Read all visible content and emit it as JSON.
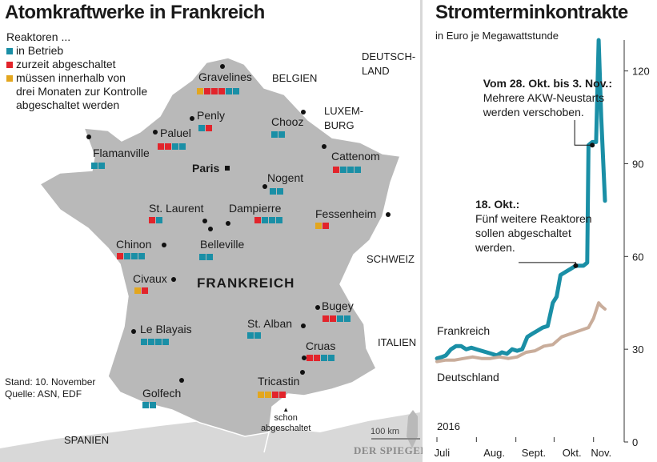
{
  "colors": {
    "in_operation": "#1a8fa6",
    "shut_down": "#e2242b",
    "to_shut_down": "#e3a61e",
    "land_france": "#b9b9b9",
    "land_neighbors": "#d8d8d8",
    "line_frankreich": "#1a8fa6",
    "line_deutschland": "#c9ad9b"
  },
  "map": {
    "title": "Atomkraftwerke in Frankreich",
    "legend": {
      "heading": "Reaktoren ...",
      "items": [
        {
          "label": "in Betrieb",
          "status": "in_operation"
        },
        {
          "label": "zurzeit abgeschaltet",
          "status": "shut_down"
        },
        {
          "label": "müssen innerhalb von",
          "label2": "drei Monaten zur Kontrolle",
          "label3": "abgeschaltet werden",
          "status": "to_shut_down"
        }
      ]
    },
    "countries": {
      "deutschland_1": "DEUTSCH-",
      "deutschland_2": "LAND",
      "belgien": "BELGIEN",
      "luxemburg_1": "LUXEM-",
      "luxemburg_2": "BURG",
      "schweiz": "SCHWEIZ",
      "italien": "ITALIEN",
      "spanien": "SPANIEN",
      "frankreich": "FRANKREICH",
      "paris": "Paris"
    },
    "plants": [
      {
        "name": "Gravelines",
        "reactors": [
          "to_shut_down",
          "shut_down",
          "shut_down",
          "shut_down",
          "in_operation",
          "in_operation"
        ]
      },
      {
        "name": "Penly",
        "reactors": [
          "in_operation",
          "shut_down"
        ]
      },
      {
        "name": "Paluel",
        "reactors": [
          "shut_down",
          "shut_down",
          "in_operation",
          "in_operation"
        ]
      },
      {
        "name": "Flamanville",
        "reactors": [
          "in_operation",
          "in_operation"
        ]
      },
      {
        "name": "Chooz",
        "reactors": [
          "in_operation",
          "in_operation"
        ]
      },
      {
        "name": "Cattenom",
        "reactors": [
          "shut_down",
          "in_operation",
          "in_operation",
          "in_operation"
        ]
      },
      {
        "name": "Nogent",
        "reactors": [
          "in_operation",
          "in_operation"
        ]
      },
      {
        "name": "St. Laurent",
        "reactors": [
          "shut_down",
          "in_operation"
        ]
      },
      {
        "name": "Dampierre",
        "reactors": [
          "shut_down",
          "in_operation",
          "in_operation",
          "in_operation"
        ]
      },
      {
        "name": "Fessenheim",
        "reactors": [
          "to_shut_down",
          "shut_down"
        ]
      },
      {
        "name": "Chinon",
        "reactors": [
          "shut_down",
          "in_operation",
          "in_operation",
          "in_operation"
        ]
      },
      {
        "name": "Belleville",
        "reactors": [
          "in_operation",
          "in_operation"
        ]
      },
      {
        "name": "Civaux",
        "reactors": [
          "to_shut_down",
          "shut_down"
        ]
      },
      {
        "name": "Bugey",
        "reactors": [
          "shut_down",
          "shut_down",
          "in_operation",
          "in_operation"
        ]
      },
      {
        "name": "Le Blayais",
        "reactors": [
          "in_operation",
          "in_operation",
          "in_operation",
          "in_operation"
        ]
      },
      {
        "name": "St. Alban",
        "reactors": [
          "in_operation",
          "in_operation"
        ]
      },
      {
        "name": "Cruas",
        "reactors": [
          "shut_down",
          "shut_down",
          "in_operation",
          "in_operation"
        ]
      },
      {
        "name": "Golfech",
        "reactors": [
          "in_operation",
          "in_operation"
        ]
      },
      {
        "name": "Tricastin",
        "reactors": [
          "to_shut_down",
          "to_shut_down",
          "shut_down",
          "shut_down"
        ]
      }
    ],
    "tricastin_note_1": "schon",
    "tricastin_note_2": "abgeschaltet",
    "footnote_1": "Stand: 10. November",
    "footnote_2": "Quelle: ASN, EDF",
    "scale_label": "100 km",
    "brand": "DER SPIEGEL"
  },
  "chart_data": {
    "type": "line",
    "title": "Stromterminkontrakte",
    "subtitle": "in Euro je Megawattstunde",
    "xlabel": "",
    "ylabel": "",
    "year_label": "2016",
    "x_tick_labels": [
      "Juli",
      "Aug.",
      "Sept.",
      "Okt.",
      "Nov."
    ],
    "x_range": [
      "2016-07-01",
      "2016-11-15"
    ],
    "ylim": [
      0,
      130
    ],
    "y_ticks": [
      0,
      30,
      60,
      90,
      120
    ],
    "y_tick_labels": [
      "0",
      "30",
      "60",
      "90",
      "120"
    ],
    "grid": false,
    "series": [
      {
        "name": "Frankreich",
        "color_key": "line_frankreich",
        "x": [
          "2016-07-01",
          "2016-07-05",
          "2016-07-08",
          "2016-07-12",
          "2016-07-16",
          "2016-07-20",
          "2016-07-24",
          "2016-07-28",
          "2016-08-01",
          "2016-08-05",
          "2016-08-09",
          "2016-08-13",
          "2016-08-17",
          "2016-08-21",
          "2016-08-25",
          "2016-08-29",
          "2016-09-02",
          "2016-09-06",
          "2016-09-10",
          "2016-09-14",
          "2016-09-18",
          "2016-09-22",
          "2016-09-26",
          "2016-09-30",
          "2016-10-03",
          "2016-10-06",
          "2016-10-10",
          "2016-10-14",
          "2016-10-18",
          "2016-10-21",
          "2016-10-24",
          "2016-10-27",
          "2016-10-28",
          "2016-10-31",
          "2016-11-03",
          "2016-11-05",
          "2016-11-07",
          "2016-11-10"
        ],
        "values": [
          27,
          27.5,
          28,
          30,
          31,
          31,
          30,
          30.5,
          30,
          29.5,
          29,
          28.5,
          28,
          29,
          28.5,
          30,
          29.5,
          30,
          34,
          35,
          36,
          37,
          37.5,
          45,
          47,
          54,
          55,
          56,
          57,
          57,
          57,
          58,
          96,
          97,
          97,
          130,
          105,
          78
        ]
      },
      {
        "name": "Deutschland",
        "color_key": "line_deutschland",
        "x": [
          "2016-07-01",
          "2016-07-08",
          "2016-07-15",
          "2016-07-22",
          "2016-07-29",
          "2016-08-05",
          "2016-08-12",
          "2016-08-19",
          "2016-08-26",
          "2016-09-02",
          "2016-09-09",
          "2016-09-16",
          "2016-09-23",
          "2016-09-30",
          "2016-10-07",
          "2016-10-14",
          "2016-10-21",
          "2016-10-28",
          "2016-11-01",
          "2016-11-05",
          "2016-11-07",
          "2016-11-10"
        ],
        "values": [
          26,
          26.5,
          26.5,
          27,
          27.5,
          27,
          27,
          27.5,
          27,
          27.5,
          29,
          29.5,
          31,
          31.5,
          34,
          35,
          36,
          37,
          40,
          45,
          44,
          43
        ]
      }
    ],
    "annotations": [
      {
        "bold": "Vom 28. Okt. bis 3. Nov.:",
        "line2": "Mehrere AKW-Neustarts",
        "line3": "werden verschoben.",
        "x": "2016-10-31",
        "y": 96
      },
      {
        "bold": "18. Okt.:",
        "line2": "Fünf weitere Reaktoren",
        "line3": "sollen abgeschaltet",
        "line4": "werden.",
        "x": "2016-10-18",
        "y": 57
      }
    ]
  }
}
